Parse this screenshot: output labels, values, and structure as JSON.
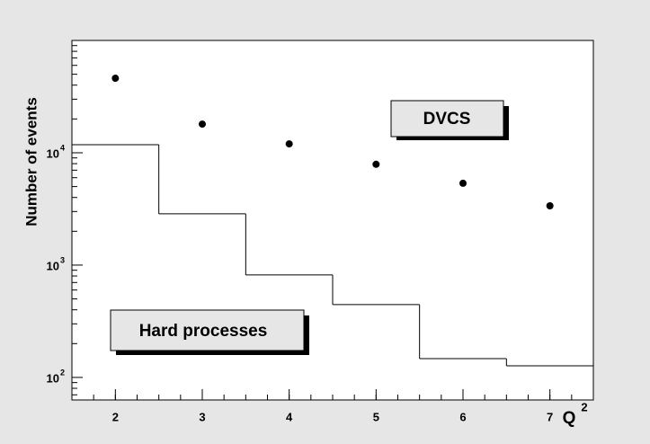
{
  "chart_data": {
    "type": "histogram",
    "y_label": "Number of events",
    "x_label": {
      "text": "Q",
      "sup": "2"
    },
    "bins": [
      1.5,
      2.5,
      3.5,
      4.5,
      5.5,
      6.5,
      7.5
    ],
    "values": [
      11800,
      2860,
      817,
      445,
      147,
      127
    ],
    "color": "#000000",
    "overlay": {
      "type": "scatter",
      "x": [
        2,
        3,
        4,
        5,
        6,
        7
      ],
      "values": [
        46100,
        18000,
        12000,
        7900,
        5350,
        3370
      ],
      "color": "#000000"
    },
    "xlim": [
      1.5,
      7.5
    ],
    "xticks": [
      2,
      3,
      4,
      5,
      6,
      7
    ],
    "ylim": [
      63,
      100000
    ],
    "log_y": true,
    "yticks": [
      {
        "value": 100,
        "label": "10",
        "exponent": "2"
      },
      {
        "value": 1000,
        "label": "10",
        "exponent": "3"
      },
      {
        "value": 10000,
        "label": "10",
        "exponent": "4"
      }
    ],
    "annotations": [
      "DVCS",
      "Hard processes"
    ]
  }
}
